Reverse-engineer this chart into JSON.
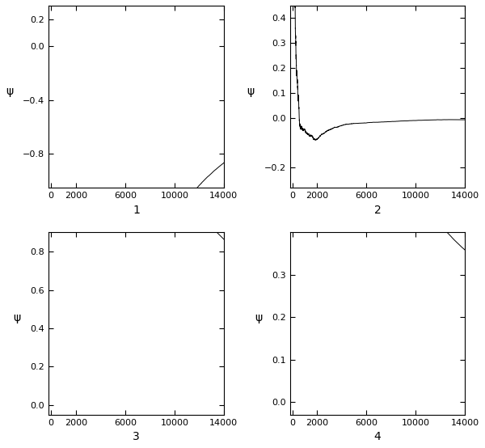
{
  "N": 14000,
  "xlim": [
    -200,
    14000
  ],
  "xticks": [
    0,
    2000,
    6000,
    10000,
    14000
  ],
  "chains": [
    {
      "label": "1",
      "ylim": [
        -1.05,
        0.3
      ],
      "yticks": [
        -0.8,
        -0.4,
        0.0,
        0.2
      ],
      "ylabel": "ψ"
    },
    {
      "label": "2",
      "ylim": [
        -0.28,
        0.45
      ],
      "yticks": [
        -0.2,
        0.0,
        0.1,
        0.2,
        0.3,
        0.4
      ],
      "ylabel": "ψ"
    },
    {
      "label": "3",
      "ylim": [
        -0.05,
        0.9
      ],
      "yticks": [
        0.0,
        0.2,
        0.4,
        0.6,
        0.8
      ],
      "ylabel": "ψ"
    },
    {
      "label": "4",
      "ylim": [
        -0.03,
        0.4
      ],
      "yticks": [
        0.0,
        0.1,
        0.2,
        0.3
      ],
      "ylabel": "ψ"
    }
  ],
  "line_color": "#000000",
  "line_width": 0.7,
  "bg_color": "#ffffff",
  "tick_fontsize": 8,
  "label_fontsize": 10
}
